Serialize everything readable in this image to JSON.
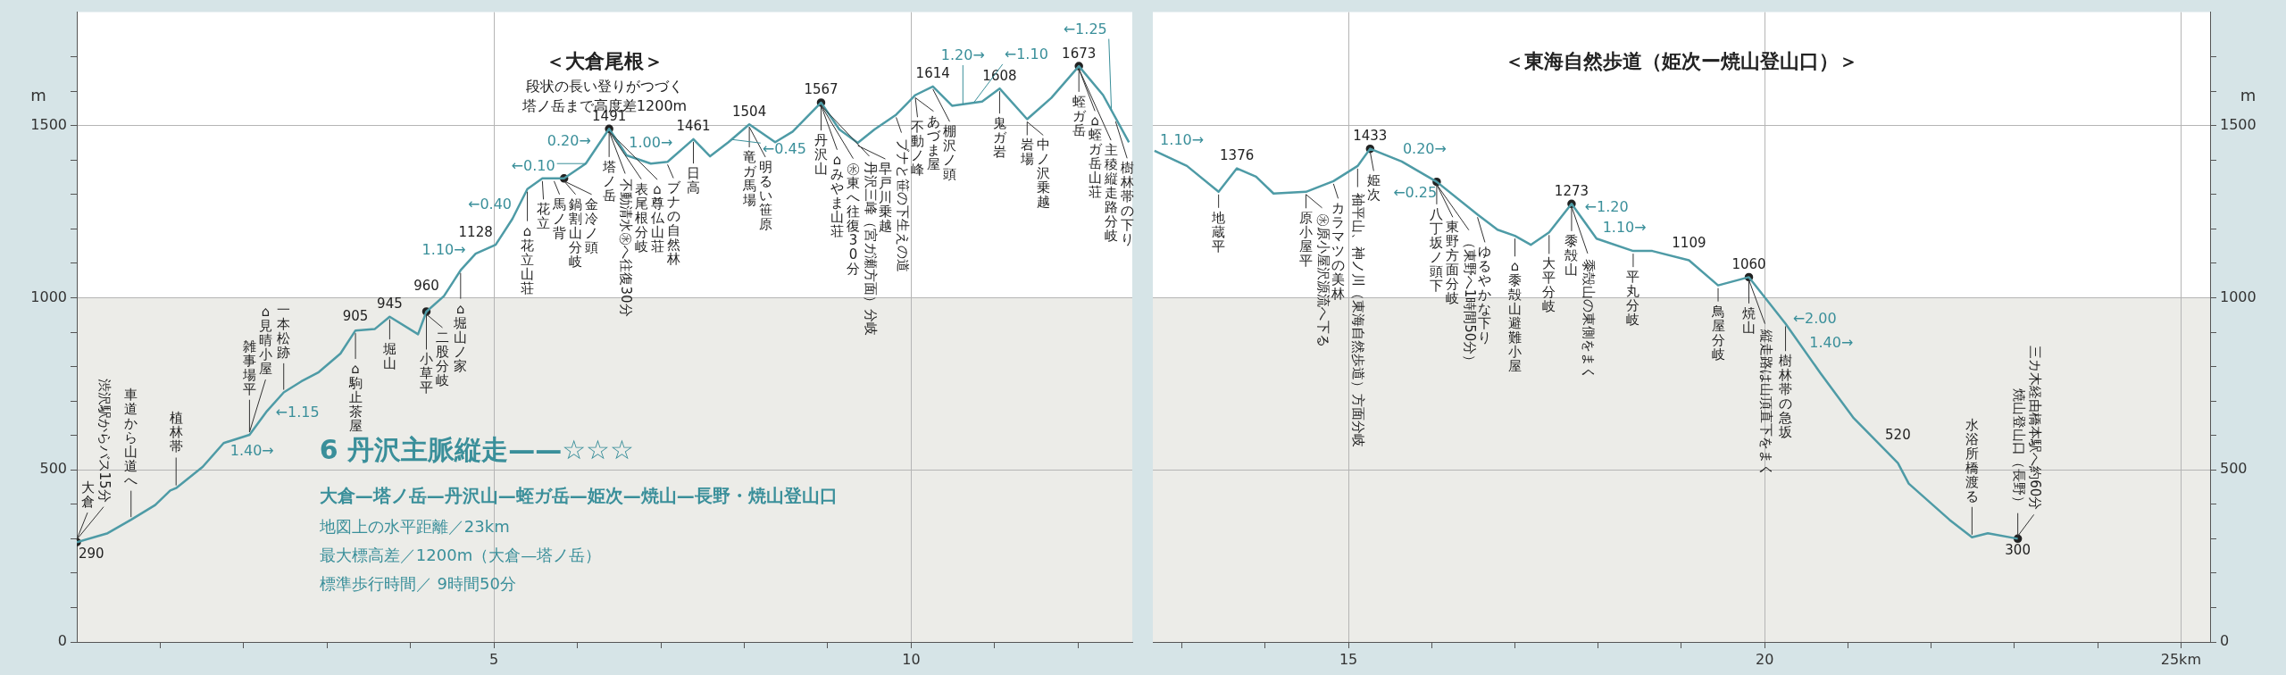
{
  "chart_data": [
    {
      "type": "line",
      "title": "＜大倉尾根＞",
      "subtitle": "段状の長い登りがつづく塔ノ岳まで高度差1200m",
      "ylabel": "m",
      "xlim": [
        0,
        12.65
      ],
      "ylim": [
        0,
        1830
      ],
      "xticks": [
        {
          "value": 1,
          "label": null
        },
        {
          "value": 2,
          "label": null
        },
        {
          "value": 3,
          "label": null
        },
        {
          "value": 4,
          "label": null
        },
        5,
        {
          "value": 6,
          "label": null
        },
        {
          "value": 7,
          "label": null
        },
        {
          "value": 8,
          "label": null
        },
        {
          "value": 9,
          "label": null
        },
        10,
        {
          "value": 11,
          "label": null
        },
        {
          "value": 12,
          "label": null
        }
      ],
      "yticks": [
        0,
        {
          "value": 100,
          "label": null
        },
        {
          "value": 200,
          "label": null
        },
        {
          "value": 300,
          "label": null
        },
        {
          "value": 400,
          "label": null
        },
        500,
        {
          "value": 600,
          "label": null
        },
        {
          "value": 700,
          "label": null
        },
        {
          "value": 800,
          "label": null
        },
        {
          "value": 900,
          "label": null
        },
        1000,
        {
          "value": 1100,
          "label": null
        },
        {
          "value": 1200,
          "label": null
        },
        {
          "value": 1300,
          "label": null
        },
        {
          "value": 1400,
          "label": null
        },
        1500,
        {
          "value": 1600,
          "label": null
        },
        {
          "value": 1700,
          "label": null
        }
      ],
      "grid": true,
      "bands": [
        {
          "axis": "y",
          "from": 0,
          "to": 1000,
          "color": "#ececE8"
        }
      ],
      "series": [
        {
          "type": "line",
          "color": "#4e9ba6",
          "x": [
            0,
            0.37,
            0.65,
            0.94,
            1.12,
            1.19,
            1.51,
            1.76,
            2.07,
            2.28,
            2.48,
            2.69,
            2.9,
            3.16,
            3.34,
            3.57,
            3.75,
            4.09,
            4.19,
            4.4,
            4.6,
            4.78,
            5.02,
            5.22,
            5.4,
            5.58,
            5.84,
            6.1,
            6.38,
            6.59,
            6.88,
            7.08,
            7.39,
            7.59,
            7.81,
            8.06,
            8.37,
            8.58,
            8.92,
            9.14,
            9.36,
            9.56,
            9.82,
            10.05,
            10.26,
            10.49,
            10.85,
            11.06,
            11.39,
            11.68,
            12.01,
            12.3,
            12.61
          ],
          "values": [
            290,
            316,
            355,
            398,
            440,
            447,
            509,
            578,
            602,
            671,
            725,
            757,
            784,
            838,
            905,
            909,
            945,
            894,
            960,
            1005,
            1080,
            1128,
            1154,
            1229,
            1316,
            1347,
            1347,
            1390,
            1491,
            1414,
            1390,
            1395,
            1461,
            1411,
            1452,
            1504,
            1452,
            1483,
            1567,
            1489,
            1450,
            1489,
            1532,
            1589,
            1614,
            1558,
            1570,
            1608,
            1519,
            1581,
            1673,
            1589,
            1452
          ],
          "value_labels": [
            "290",
            null,
            null,
            null,
            null,
            null,
            null,
            null,
            null,
            null,
            null,
            null,
            null,
            null,
            "905",
            null,
            "945",
            null,
            "960",
            null,
            null,
            "1128",
            null,
            null,
            null,
            null,
            null,
            null,
            "1491",
            null,
            null,
            null,
            "1461",
            null,
            null,
            "1504",
            null,
            null,
            "1567",
            null,
            null,
            null,
            null,
            null,
            "1614",
            null,
            null,
            "1608",
            null,
            null,
            "1673",
            null,
            null
          ]
        },
        {
          "type": "scatter",
          "color": "#222222",
          "x": [
            0,
            4.19,
            5.84,
            6.38,
            8.92,
            12.01
          ],
          "values": [
            290,
            960,
            1347,
            1491,
            1567,
            1673
          ]
        }
      ],
      "annotations": [
        "6 丹沢主脈縦走——☆☆☆",
        "大倉—塔ノ岳—丹沢山—蛭ガ岳—姫次—焼山—長野・焼山登山口",
        "地図上の水平距離／23km",
        "最大標高差／1200m（大倉—塔ノ岳）",
        "標準歩行時間／ 9時間50分",
        {
          "text": "大倉",
          "x": 0,
          "y": 290
        },
        {
          "text": "渋沢駅からバス15分",
          "x": 0,
          "y": 290
        },
        {
          "text": "車道から山道へ",
          "x": 0.65,
          "y": 355
        },
        {
          "text": "植林帯",
          "x": 1.19,
          "y": 447
        },
        {
          "text": "雑事場平",
          "x": 2.07,
          "y": 602
        },
        {
          "text": "⌂見晴小屋",
          "x": 2.07,
          "y": 602
        },
        {
          "text": "一本松跡",
          "x": 2.48,
          "y": 725
        },
        {
          "text": "⌂駒止茶屋",
          "x": 3.34,
          "y": 905
        },
        {
          "text": "堀山",
          "x": 3.75,
          "y": 945
        },
        {
          "text": "小草平",
          "x": 4.19,
          "y": 960
        },
        {
          "text": "二股分岐",
          "x": 4.19,
          "y": 960
        },
        {
          "text": "⌂堀山ノ家",
          "x": 4.6,
          "y": 1080
        },
        {
          "text": "⌂花立山荘",
          "x": 5.4,
          "y": 1316
        },
        {
          "text": "花立",
          "x": 5.58,
          "y": 1347
        },
        {
          "text": "馬ノ背",
          "x": 5.72,
          "y": 1347
        },
        {
          "text": "鍋割山分岐",
          "x": 5.84,
          "y": 1347
        },
        {
          "text": "金冷ノ頭",
          "x": 5.84,
          "y": 1347
        },
        {
          "text": "塔ノ岳",
          "x": 6.38,
          "y": 1491
        },
        {
          "text": "不動清水㊌へ往復30分",
          "x": 6.38,
          "y": 1491
        },
        {
          "text": "表尾根分岐",
          "x": 6.38,
          "y": 1491
        },
        {
          "text": "⌂尊仏山荘",
          "x": 6.38,
          "y": 1491
        },
        {
          "text": "ブナの自然林",
          "x": 7.08,
          "y": 1395
        },
        {
          "text": "日高",
          "x": 7.39,
          "y": 1461
        },
        {
          "text": "竜ガ馬場",
          "x": 8.06,
          "y": 1504
        },
        {
          "text": "明るい笹原",
          "x": 8.06,
          "y": 1504
        },
        {
          "text": "丹沢山",
          "x": 8.92,
          "y": 1567
        },
        {
          "text": "⌂みやま山荘",
          "x": 8.92,
          "y": 1567
        },
        {
          "text": "㊌東へ往復30分",
          "x": 8.92,
          "y": 1567
        },
        {
          "text": "丹沢三峰（宮ガ瀬方面）分岐",
          "x": 8.92,
          "y": 1567
        },
        {
          "text": "早戸川乗越",
          "x": 9.36,
          "y": 1450
        },
        {
          "text": "ブナと笹の下生えの道",
          "x": 9.82,
          "y": 1532
        },
        {
          "text": "不動ノ峰",
          "x": 10.05,
          "y": 1589
        },
        {
          "text": "あづま屋",
          "x": 10.05,
          "y": 1589
        },
        {
          "text": "棚沢ノ頭",
          "x": 10.26,
          "y": 1614
        },
        {
          "text": "鬼ガ岩",
          "x": 11.06,
          "y": 1608
        },
        {
          "text": "岩場",
          "x": 11.39,
          "y": 1519
        },
        {
          "text": "中ノ沢乗越",
          "x": 11.39,
          "y": 1519
        },
        {
          "text": "蛭ガ岳",
          "x": 12.01,
          "y": 1673
        },
        {
          "text": "⌂蛭ガ岳山荘",
          "x": 12.01,
          "y": 1673
        },
        {
          "text": "主稜縦走路分岐",
          "x": 12.01,
          "y": 1673
        },
        {
          "text": "樹林帯の下り",
          "x": 12.45,
          "y": 1520
        },
        {
          "text": "1.40→",
          "x": 2.1,
          "y": 612
        },
        {
          "text": "←1.15",
          "x": 2.33,
          "y": 684
        },
        {
          "text": "1.10→",
          "x": 4.4,
          "y": 1005
        },
        {
          "text": "←0.40",
          "x": 4.95,
          "y": 1146
        },
        {
          "text": "0.20→",
          "x": 5.9,
          "y": 1357
        },
        {
          "text": "←0.10",
          "x": 6.1,
          "y": 1390
        },
        {
          "text": "1.00→",
          "x": 6.88,
          "y": 1390
        },
        {
          "text": "←0.45",
          "x": 7.85,
          "y": 1460
        },
        {
          "text": "1.20→",
          "x": 10.62,
          "y": 1562
        },
        {
          "text": "←1.10",
          "x": 10.75,
          "y": 1567
        },
        {
          "text": "←1.25",
          "x": 12.4,
          "y": 1545
        }
      ]
    },
    {
      "type": "line",
      "title": "＜東海自然歩道（姫次ー焼山登山口）＞",
      "ylabel": "m",
      "xlim": [
        12.65,
        25.35
      ],
      "ylim": [
        0,
        1830
      ],
      "xticks": [
        {
          "value": 13,
          "label": null
        },
        {
          "value": 14,
          "label": null
        },
        15,
        {
          "value": 16,
          "label": null
        },
        {
          "value": 17,
          "label": null
        },
        {
          "value": 18,
          "label": null
        },
        {
          "value": 19,
          "label": null
        },
        20,
        {
          "value": 21,
          "label": null
        },
        {
          "value": 22,
          "label": null
        },
        {
          "value": 23,
          "label": null
        },
        {
          "value": 24,
          "label": null
        },
        {
          "value": 25,
          "label": "25km"
        }
      ],
      "yticks": [
        0,
        {
          "value": 100,
          "label": null
        },
        {
          "value": 200,
          "label": null
        },
        {
          "value": 300,
          "label": null
        },
        {
          "value": 400,
          "label": null
        },
        500,
        {
          "value": 600,
          "label": null
        },
        {
          "value": 700,
          "label": null
        },
        {
          "value": 800,
          "label": null
        },
        {
          "value": 900,
          "label": null
        },
        1000,
        {
          "value": 1100,
          "label": null
        },
        {
          "value": 1200,
          "label": null
        },
        {
          "value": 1300,
          "label": null
        },
        {
          "value": 1400,
          "label": null
        },
        1500,
        {
          "value": 1600,
          "label": null
        },
        {
          "value": 1700,
          "label": null
        }
      ],
      "grid": true,
      "bands": [
        {
          "axis": "y",
          "from": 0,
          "to": 1000,
          "color": "#ececE8"
        }
      ],
      "series": [
        {
          "type": "line",
          "color": "#4e9ba6",
          "x": [
            12.67,
            13.06,
            13.44,
            13.66,
            13.89,
            14.1,
            14.49,
            14.82,
            15.11,
            15.26,
            15.64,
            16.06,
            16.55,
            16.79,
            17.0,
            17.19,
            17.41,
            17.68,
            17.98,
            18.42,
            18.65,
            19.09,
            19.44,
            19.81,
            20.25,
            20.67,
            21.07,
            21.6,
            21.73,
            22.22,
            22.49,
            22.68,
            23.04
          ],
          "values": [
            1427,
            1383,
            1308,
            1376,
            1352,
            1303,
            1308,
            1339,
            1383,
            1433,
            1396,
            1337,
            1242,
            1198,
            1180,
            1154,
            1190,
            1273,
            1172,
            1136,
            1136,
            1109,
            1036,
            1060,
            925,
            781,
            650,
            520,
            460,
            355,
            304,
            316,
            300
          ],
          "value_labels": [
            null,
            null,
            null,
            "1376",
            null,
            null,
            null,
            null,
            null,
            "1433",
            null,
            null,
            null,
            null,
            null,
            null,
            null,
            "1273",
            null,
            null,
            null,
            "1109",
            null,
            "1060",
            null,
            null,
            null,
            "520",
            null,
            null,
            null,
            null,
            "300"
          ]
        },
        {
          "type": "scatter",
          "color": "#222222",
          "x": [
            15.26,
            16.06,
            17.68,
            19.81,
            23.04
          ],
          "values": [
            1433,
            1337,
            1273,
            1060,
            300
          ]
        }
      ],
      "annotations": [
        {
          "text": "1.10→",
          "x": 13.0,
          "y": 1390
        },
        {
          "text": "地蔵平",
          "x": 13.44,
          "y": 1308
        },
        {
          "text": "原小屋平",
          "x": 14.49,
          "y": 1308
        },
        {
          "text": "㊌原小屋沢源流へ下る",
          "x": 14.49,
          "y": 1308
        },
        {
          "text": "カラマツの美林",
          "x": 14.82,
          "y": 1339
        },
        {
          "text": "袖平山、神ノ川（東海自然歩道）方面分岐",
          "x": 15.11,
          "y": 1383
        },
        {
          "text": "姫次",
          "x": 15.26,
          "y": 1433
        },
        {
          "text": "0.20→",
          "x": 15.6,
          "y": 1400
        },
        {
          "text": "←0.25",
          "x": 15.8,
          "y": 1374
        },
        {
          "text": "八丁坂ノ頭下",
          "x": 16.06,
          "y": 1337
        },
        {
          "text": "東野方面分岐",
          "x": 16.06,
          "y": 1337
        },
        {
          "text": "（東野へ1時間50分）",
          "x": 16.06,
          "y": 1337
        },
        {
          "text": "ゆるやかな下り",
          "x": 16.55,
          "y": 1242
        },
        {
          "text": "⌂黍殻山避難小屋",
          "x": 17.0,
          "y": 1180
        },
        {
          "text": "大平分岐",
          "x": 17.41,
          "y": 1190
        },
        {
          "text": "黍殻山",
          "x": 17.68,
          "y": 1273
        },
        {
          "text": "黍殻山の東側をまく",
          "x": 17.68,
          "y": 1273
        },
        {
          "text": "1.10→",
          "x": 18.0,
          "y": 1170
        },
        {
          "text": "←1.20",
          "x": 18.1,
          "y": 1162
        },
        {
          "text": "平丸分岐",
          "x": 18.42,
          "y": 1136
        },
        {
          "text": "鳥屋分岐",
          "x": 19.44,
          "y": 1036
        },
        {
          "text": "焼山",
          "x": 19.81,
          "y": 1060
        },
        {
          "text": "縦走路は山頂直下をまく",
          "x": 19.81,
          "y": 1060
        },
        {
          "text": "樹林帯の急坂",
          "x": 20.25,
          "y": 925
        },
        {
          "text": "1.40→",
          "x": 20.8,
          "y": 738
        },
        {
          "text": "←2.00",
          "x": 20.6,
          "y": 805
        },
        {
          "text": "水浴所橋渡る",
          "x": 22.49,
          "y": 304
        },
        {
          "text": "焼山登山口（長野）",
          "x": 23.04,
          "y": 300
        },
        {
          "text": "三カ木経由橋本駅へ約60分",
          "x": 23.04,
          "y": 300
        }
      ]
    }
  ]
}
